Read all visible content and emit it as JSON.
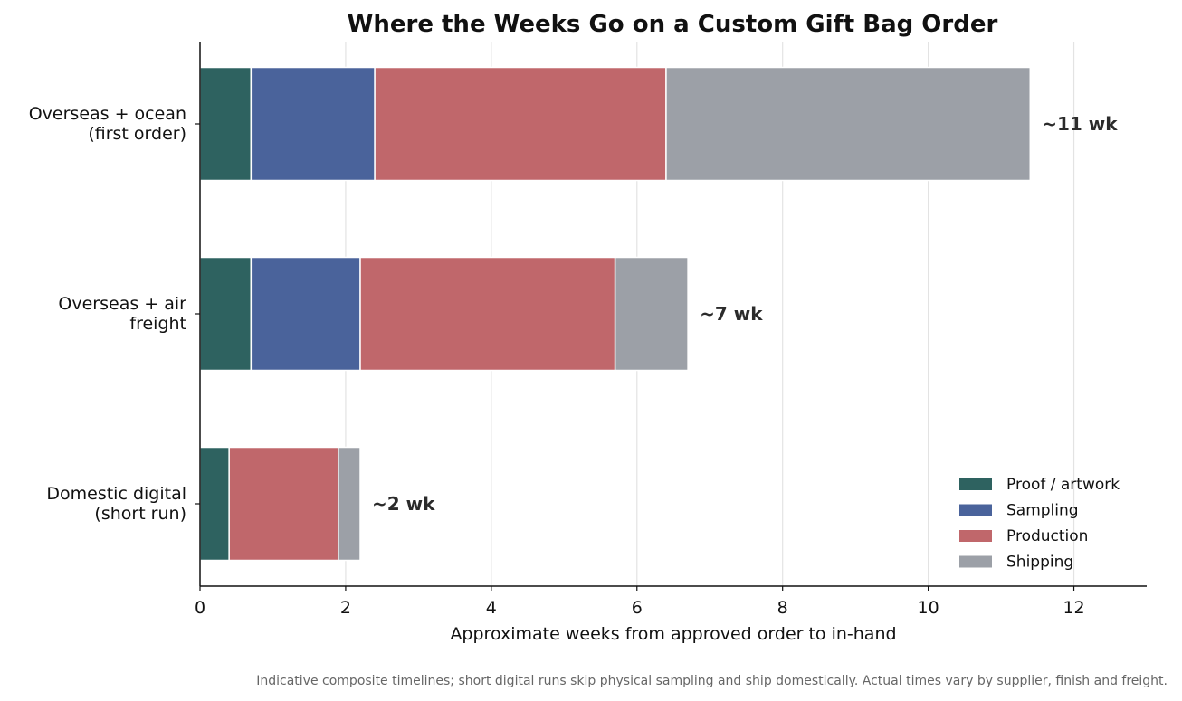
{
  "chart_data": {
    "type": "bar",
    "orientation": "horizontal",
    "stacked": true,
    "title": "Where the Weeks Go on a Custom Gift Bag Order",
    "xlabel": "Approximate weeks from approved order to in-hand",
    "ylabel": "",
    "xlim": [
      0,
      13
    ],
    "xticks": [
      0,
      2,
      4,
      6,
      8,
      10,
      12
    ],
    "grid": "x",
    "legend_position": "bottom-right",
    "categories": [
      [
        "Overseas + ocean",
        "(first order)"
      ],
      [
        "Overseas + air",
        "freight"
      ],
      [
        "Domestic digital",
        "(short run)"
      ]
    ],
    "series": [
      {
        "name": "Proof / artwork",
        "color": "#2e6260",
        "values": [
          0.7,
          0.7,
          0.4
        ]
      },
      {
        "name": "Sampling",
        "color": "#4a639b",
        "values": [
          1.7,
          1.5,
          0
        ]
      },
      {
        "name": "Production",
        "color": "#c0676b",
        "values": [
          4.0,
          3.5,
          1.5
        ]
      },
      {
        "name": "Shipping",
        "color": "#9ca0a7",
        "values": [
          5.0,
          1.0,
          0.3
        ]
      }
    ],
    "total_labels": [
      "~11 wk",
      "~7 wk",
      "~2 wk"
    ],
    "footnote": "Indicative composite timelines; short digital runs skip physical sampling and ship domestically. Actual times vary by supplier, finish and freight."
  }
}
